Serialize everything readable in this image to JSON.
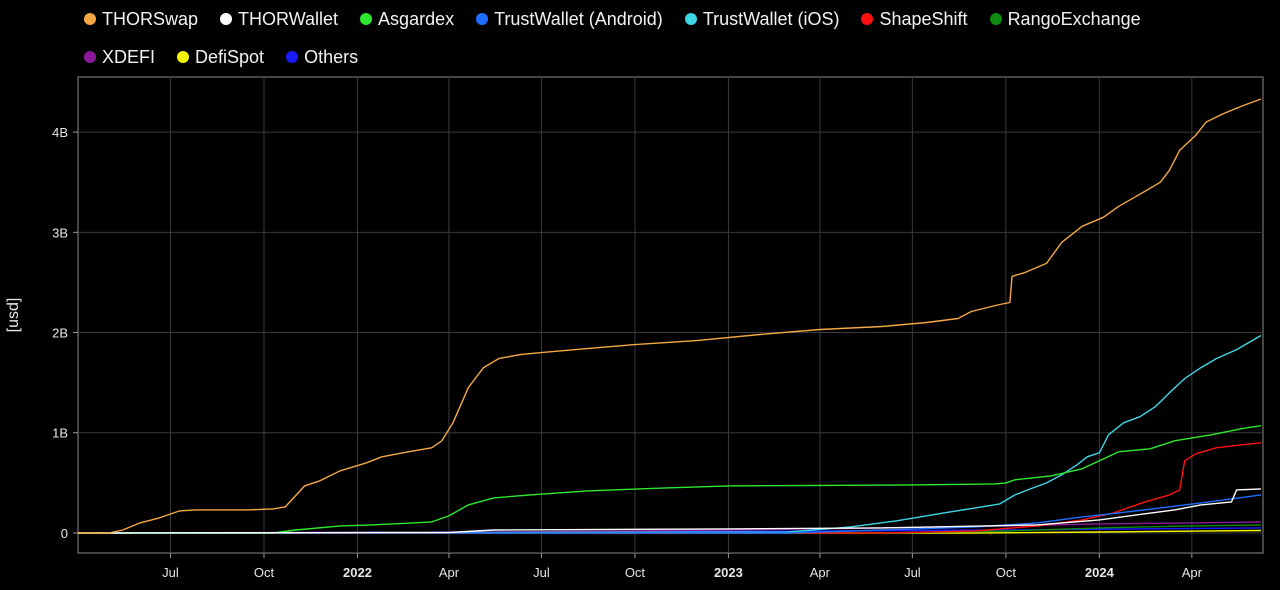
{
  "legend": {
    "row1": [
      {
        "label": "THORSwap",
        "color": "#f5a742"
      },
      {
        "label": "THORWallet",
        "color": "#ffffff"
      },
      {
        "label": "Asgardex",
        "color": "#2ee82e"
      },
      {
        "label": "TrustWallet (Android)",
        "color": "#1f6fff"
      },
      {
        "label": "TrustWallet (iOS)",
        "color": "#3ed6e6"
      },
      {
        "label": "ShapeShift",
        "color": "#ff1010"
      },
      {
        "label": "RangoExchange",
        "color": "#0f8a10"
      }
    ],
    "row2": [
      {
        "label": "XDEFI",
        "color": "#8a1a9a"
      },
      {
        "label": "DefiSpot",
        "color": "#f5f500"
      },
      {
        "label": "Others",
        "color": "#1a1aff"
      }
    ]
  },
  "chart_data": {
    "type": "line",
    "title": "",
    "xlabel": "",
    "ylabel": "[usd]",
    "xlim": [
      "2021-04-01",
      "2024-06-10"
    ],
    "ylim": [
      -200000000,
      4550000000
    ],
    "y_ticks": [
      {
        "value": 0,
        "label": "0"
      },
      {
        "value": 1000000000,
        "label": "1B"
      },
      {
        "value": 2000000000,
        "label": "2B"
      },
      {
        "value": 3000000000,
        "label": "3B"
      },
      {
        "value": 4000000000,
        "label": "4B"
      }
    ],
    "x_ticks": [
      {
        "date": "2021-07-01",
        "label": "Jul",
        "bold": false
      },
      {
        "date": "2021-10-01",
        "label": "Oct",
        "bold": false
      },
      {
        "date": "2022-01-01",
        "label": "2022",
        "bold": true
      },
      {
        "date": "2022-04-01",
        "label": "Apr",
        "bold": false
      },
      {
        "date": "2022-07-01",
        "label": "Jul",
        "bold": false
      },
      {
        "date": "2022-10-01",
        "label": "Oct",
        "bold": false
      },
      {
        "date": "2023-01-01",
        "label": "2023",
        "bold": true
      },
      {
        "date": "2023-04-01",
        "label": "Apr",
        "bold": false
      },
      {
        "date": "2023-07-01",
        "label": "Jul",
        "bold": false
      },
      {
        "date": "2023-10-01",
        "label": "Oct",
        "bold": false
      },
      {
        "date": "2024-01-01",
        "label": "2024",
        "bold": true
      },
      {
        "date": "2024-04-01",
        "label": "Apr",
        "bold": false
      }
    ],
    "grid": true,
    "legend_position": "top",
    "series": [
      {
        "name": "THORSwap",
        "color": "#f5a742",
        "points": [
          [
            "2021-04-01",
            0
          ],
          [
            "2021-05-01",
            0
          ],
          [
            "2021-05-15",
            30000000
          ],
          [
            "2021-06-01",
            100000000
          ],
          [
            "2021-06-20",
            150000000
          ],
          [
            "2021-07-10",
            220000000
          ],
          [
            "2021-07-25",
            230000000
          ],
          [
            "2021-09-15",
            230000000
          ],
          [
            "2021-10-10",
            240000000
          ],
          [
            "2021-10-22",
            260000000
          ],
          [
            "2021-11-10",
            470000000
          ],
          [
            "2021-11-25",
            520000000
          ],
          [
            "2021-12-15",
            620000000
          ],
          [
            "2022-01-10",
            700000000
          ],
          [
            "2022-01-25",
            760000000
          ],
          [
            "2022-02-20",
            810000000
          ],
          [
            "2022-03-15",
            850000000
          ],
          [
            "2022-03-25",
            920000000
          ],
          [
            "2022-04-05",
            1100000000
          ],
          [
            "2022-04-20",
            1450000000
          ],
          [
            "2022-05-05",
            1650000000
          ],
          [
            "2022-05-20",
            1740000000
          ],
          [
            "2022-06-10",
            1780000000
          ],
          [
            "2022-07-01",
            1800000000
          ],
          [
            "2022-08-15",
            1840000000
          ],
          [
            "2022-10-01",
            1880000000
          ],
          [
            "2022-12-01",
            1920000000
          ],
          [
            "2023-02-01",
            1980000000
          ],
          [
            "2023-04-01",
            2030000000
          ],
          [
            "2023-06-01",
            2060000000
          ],
          [
            "2023-07-15",
            2100000000
          ],
          [
            "2023-08-15",
            2140000000
          ],
          [
            "2023-08-28",
            2210000000
          ],
          [
            "2023-09-25",
            2280000000
          ],
          [
            "2023-10-05",
            2300000000
          ],
          [
            "2023-10-07",
            2560000000
          ],
          [
            "2023-10-20",
            2600000000
          ],
          [
            "2023-11-10",
            2690000000
          ],
          [
            "2023-11-25",
            2900000000
          ],
          [
            "2023-12-15",
            3060000000
          ],
          [
            "2024-01-05",
            3150000000
          ],
          [
            "2024-01-20",
            3260000000
          ],
          [
            "2024-02-10",
            3380000000
          ],
          [
            "2024-03-01",
            3500000000
          ],
          [
            "2024-03-10",
            3620000000
          ],
          [
            "2024-03-20",
            3820000000
          ],
          [
            "2024-04-05",
            3970000000
          ],
          [
            "2024-04-15",
            4100000000
          ],
          [
            "2024-05-01",
            4180000000
          ],
          [
            "2024-05-20",
            4260000000
          ],
          [
            "2024-06-08",
            4330000000
          ]
        ]
      },
      {
        "name": "THORWallet",
        "color": "#ffffff",
        "points": [
          [
            "2021-04-01",
            0
          ],
          [
            "2022-04-01",
            5000000
          ],
          [
            "2022-05-15",
            30000000
          ],
          [
            "2023-01-01",
            40000000
          ],
          [
            "2023-06-01",
            50000000
          ],
          [
            "2023-11-01",
            80000000
          ],
          [
            "2024-01-01",
            130000000
          ],
          [
            "2024-03-15",
            230000000
          ],
          [
            "2024-04-10",
            280000000
          ],
          [
            "2024-05-10",
            310000000
          ],
          [
            "2024-05-15",
            430000000
          ],
          [
            "2024-06-08",
            440000000
          ]
        ]
      },
      {
        "name": "Asgardex",
        "color": "#2ee82e",
        "points": [
          [
            "2021-04-01",
            0
          ],
          [
            "2021-10-10",
            0
          ],
          [
            "2021-11-01",
            30000000
          ],
          [
            "2021-12-15",
            70000000
          ],
          [
            "2022-01-15",
            80000000
          ],
          [
            "2022-02-15",
            95000000
          ],
          [
            "2022-03-15",
            110000000
          ],
          [
            "2022-04-01",
            170000000
          ],
          [
            "2022-04-20",
            280000000
          ],
          [
            "2022-05-15",
            350000000
          ],
          [
            "2022-06-20",
            380000000
          ],
          [
            "2022-08-15",
            420000000
          ],
          [
            "2022-11-01",
            450000000
          ],
          [
            "2023-01-01",
            470000000
          ],
          [
            "2023-04-01",
            475000000
          ],
          [
            "2023-07-01",
            480000000
          ],
          [
            "2023-09-20",
            490000000
          ],
          [
            "2023-10-01",
            500000000
          ],
          [
            "2023-10-10",
            530000000
          ],
          [
            "2023-11-15",
            570000000
          ],
          [
            "2023-12-15",
            640000000
          ],
          [
            "2024-01-01",
            720000000
          ],
          [
            "2024-01-20",
            810000000
          ],
          [
            "2024-02-20",
            840000000
          ],
          [
            "2024-03-15",
            920000000
          ],
          [
            "2024-04-20",
            980000000
          ],
          [
            "2024-05-20",
            1040000000
          ],
          [
            "2024-06-08",
            1070000000
          ]
        ]
      },
      {
        "name": "TrustWallet (Android)",
        "color": "#1f6fff",
        "points": [
          [
            "2021-04-01",
            0
          ],
          [
            "2023-03-01",
            0
          ],
          [
            "2023-06-01",
            30000000
          ],
          [
            "2023-09-01",
            60000000
          ],
          [
            "2023-11-01",
            100000000
          ],
          [
            "2023-12-15",
            160000000
          ],
          [
            "2024-01-20",
            200000000
          ],
          [
            "2024-03-01",
            250000000
          ],
          [
            "2024-04-10",
            300000000
          ],
          [
            "2024-06-08",
            380000000
          ]
        ]
      },
      {
        "name": "TrustWallet (iOS)",
        "color": "#3ed6e6",
        "points": [
          [
            "2021-04-01",
            0
          ],
          [
            "2023-03-01",
            10000000
          ],
          [
            "2023-05-01",
            60000000
          ],
          [
            "2023-06-15",
            120000000
          ],
          [
            "2023-08-01",
            200000000
          ],
          [
            "2023-09-01",
            250000000
          ],
          [
            "2023-09-25",
            290000000
          ],
          [
            "2023-10-10",
            380000000
          ],
          [
            "2023-10-25",
            440000000
          ],
          [
            "2023-11-10",
            500000000
          ],
          [
            "2023-11-25",
            580000000
          ],
          [
            "2023-12-10",
            680000000
          ],
          [
            "2023-12-20",
            760000000
          ],
          [
            "2024-01-01",
            800000000
          ],
          [
            "2024-01-10",
            980000000
          ],
          [
            "2024-01-25",
            1100000000
          ],
          [
            "2024-02-10",
            1160000000
          ],
          [
            "2024-02-25",
            1260000000
          ],
          [
            "2024-03-10",
            1400000000
          ],
          [
            "2024-03-25",
            1540000000
          ],
          [
            "2024-04-10",
            1650000000
          ],
          [
            "2024-04-25",
            1740000000
          ],
          [
            "2024-05-15",
            1830000000
          ],
          [
            "2024-06-08",
            1970000000
          ]
        ]
      },
      {
        "name": "ShapeShift",
        "color": "#ff1010",
        "points": [
          [
            "2021-04-01",
            0
          ],
          [
            "2023-06-01",
            0
          ],
          [
            "2023-09-01",
            20000000
          ],
          [
            "2023-11-01",
            70000000
          ],
          [
            "2023-12-15",
            130000000
          ],
          [
            "2024-01-15",
            200000000
          ],
          [
            "2024-02-15",
            310000000
          ],
          [
            "2024-03-10",
            380000000
          ],
          [
            "2024-03-20",
            430000000
          ],
          [
            "2024-03-25",
            720000000
          ],
          [
            "2024-04-05",
            790000000
          ],
          [
            "2024-04-25",
            850000000
          ],
          [
            "2024-05-20",
            880000000
          ],
          [
            "2024-06-08",
            900000000
          ]
        ]
      },
      {
        "name": "RangoExchange",
        "color": "#0f8a10",
        "points": [
          [
            "2021-04-01",
            0
          ],
          [
            "2023-06-01",
            0
          ],
          [
            "2023-10-01",
            20000000
          ],
          [
            "2024-01-01",
            50000000
          ],
          [
            "2024-04-01",
            70000000
          ],
          [
            "2024-06-08",
            80000000
          ]
        ]
      },
      {
        "name": "XDEFI",
        "color": "#8a1a9a",
        "points": [
          [
            "2021-04-01",
            0
          ],
          [
            "2022-06-01",
            10000000
          ],
          [
            "2023-01-01",
            30000000
          ],
          [
            "2023-06-01",
            50000000
          ],
          [
            "2023-10-01",
            70000000
          ],
          [
            "2024-01-01",
            90000000
          ],
          [
            "2024-04-01",
            100000000
          ],
          [
            "2024-06-08",
            110000000
          ]
        ]
      },
      {
        "name": "DefiSpot",
        "color": "#f5f500",
        "points": [
          [
            "2021-04-01",
            0
          ],
          [
            "2023-09-01",
            0
          ],
          [
            "2024-01-01",
            10000000
          ],
          [
            "2024-06-08",
            25000000
          ]
        ]
      },
      {
        "name": "Others",
        "color": "#1a1aff",
        "points": [
          [
            "2021-04-01",
            0
          ],
          [
            "2022-01-01",
            5000000
          ],
          [
            "2023-01-01",
            15000000
          ],
          [
            "2023-10-01",
            30000000
          ],
          [
            "2024-06-08",
            50000000
          ]
        ]
      }
    ]
  }
}
